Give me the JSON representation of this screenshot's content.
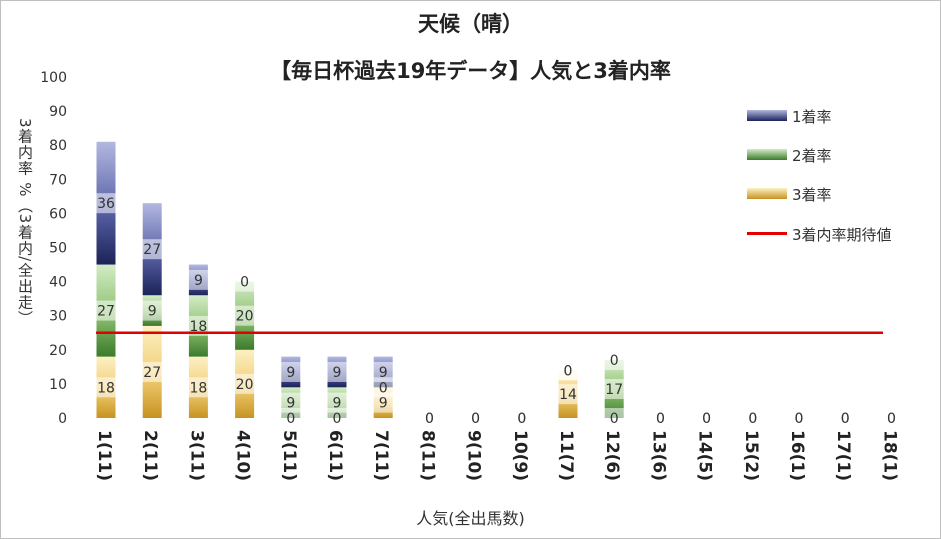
{
  "chart_data": {
    "type": "bar",
    "stacked": true,
    "title": "天候（晴）",
    "subtitle": "【毎日杯過去19年データ】人気と3着内率",
    "xlabel": "人気(全出馬数)",
    "ylabel": "3着内率 %（3着内/全出走）",
    "ylim": [
      0,
      100
    ],
    "yticks": [
      0,
      10,
      20,
      30,
      40,
      50,
      60,
      70,
      80,
      90,
      100
    ],
    "categories": [
      "1(11)",
      "2(11)",
      "3(11)",
      "4(10)",
      "5(11)",
      "6(11)",
      "7(11)",
      "8(11)",
      "9(10)",
      "10(9)",
      "11(7)",
      "12(6)",
      "13(6)",
      "14(5)",
      "15(2)",
      "16(1)",
      "17(1)",
      "18(1)"
    ],
    "series": [
      {
        "name": "3着率",
        "values": [
          18,
          27,
          18,
          20,
          0,
          0,
          9,
          0,
          0,
          0,
          14,
          0,
          0,
          0,
          0,
          0,
          0,
          0
        ],
        "color": "#d4a22c"
      },
      {
        "name": "2着率",
        "values": [
          27,
          9,
          18,
          20,
          9,
          9,
          0,
          0,
          0,
          0,
          0,
          17,
          0,
          0,
          0,
          0,
          0,
          0
        ],
        "color": "#4d8a3c"
      },
      {
        "name": "1着率",
        "values": [
          36,
          27,
          9,
          0,
          9,
          9,
          9,
          0,
          0,
          0,
          0,
          0,
          0,
          0,
          0,
          0,
          0,
          0
        ],
        "color": "#2b3473"
      }
    ],
    "reference_line": {
      "name": "3着内率期待値",
      "value": 25,
      "color": "#e00000"
    },
    "grid": false,
    "legend_position": "right"
  }
}
